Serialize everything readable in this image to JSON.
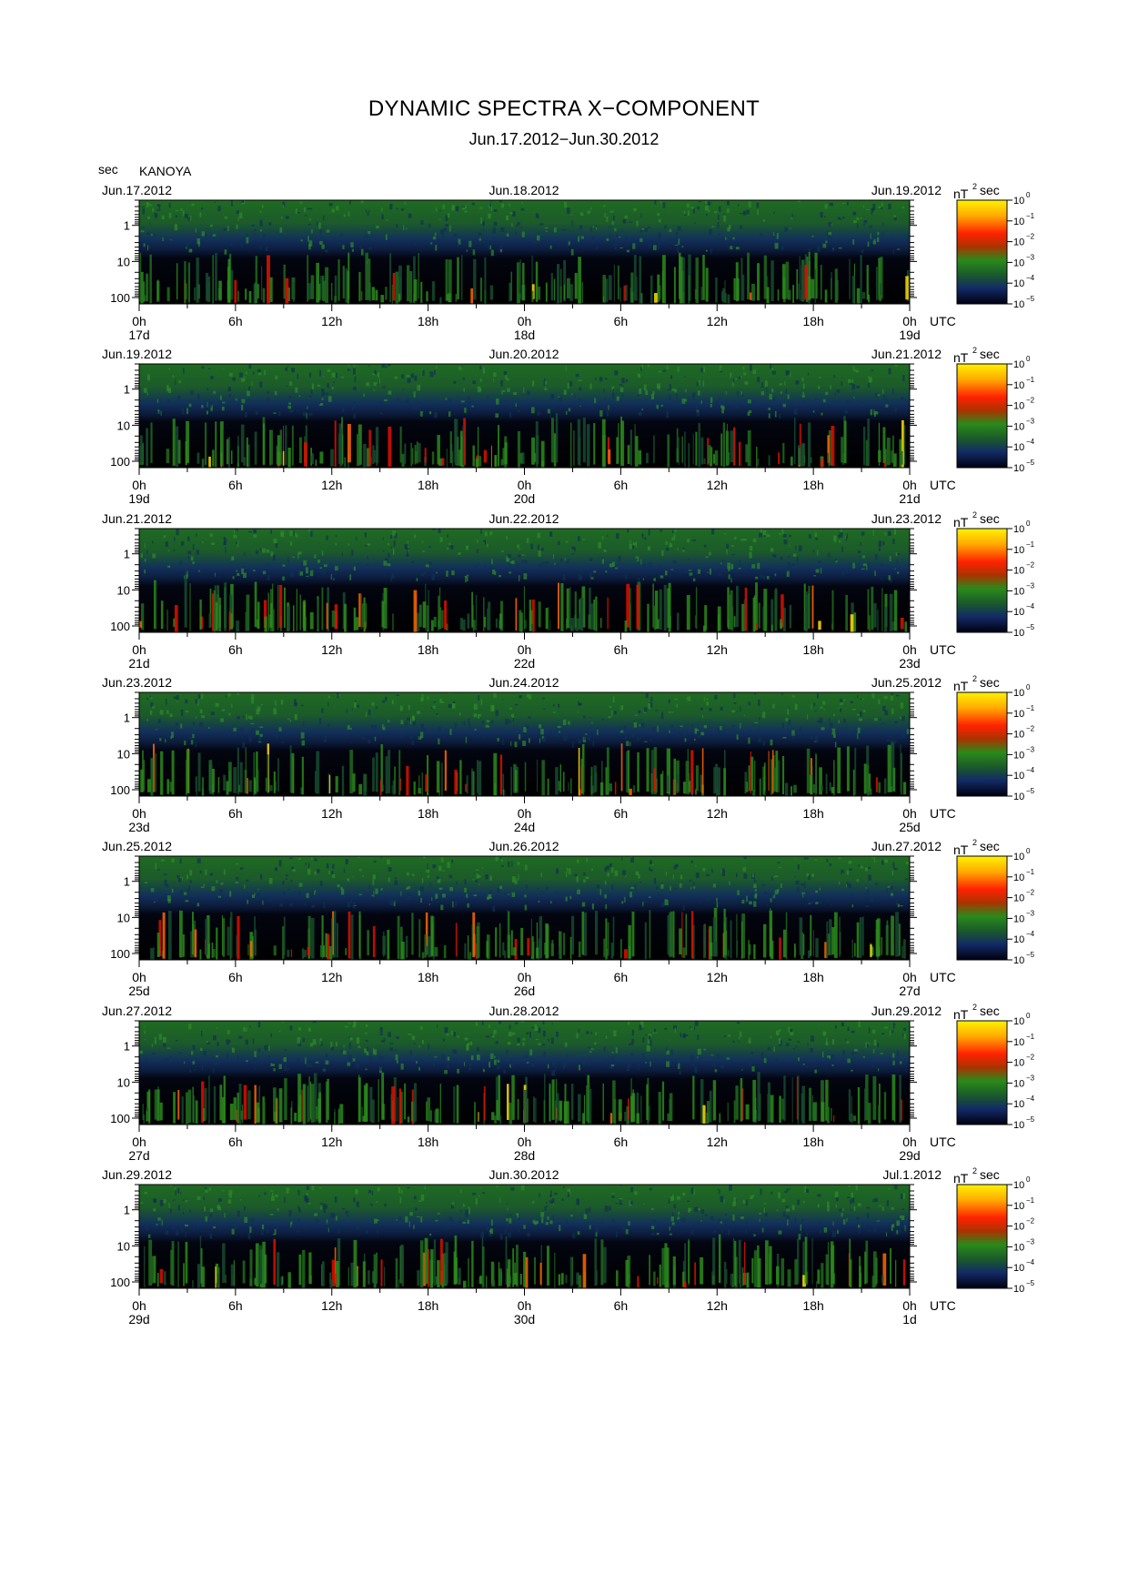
{
  "header": {
    "title": "DYNAMIC SPECTRA X−COMPONENT",
    "subtitle": "Jun.17.2012−Jun.30.2012",
    "y_unit": "sec",
    "station": "KANOYA"
  },
  "chart_data": {
    "type": "heatmap",
    "title": "DYNAMIC SPECTRA X−COMPONENT",
    "subtitle": "Jun.17.2012−Jun.30.2012",
    "station": "KANOYA",
    "ylabel": "sec",
    "yscale": "log",
    "ylim": [
      0.2,
      150
    ],
    "yticks": [
      "1",
      "10",
      "100"
    ],
    "xticks": [
      "0h",
      "6h",
      "12h",
      "18h",
      "0h",
      "6h",
      "12h",
      "18h",
      "0h"
    ],
    "xtick_suffix": "UTC",
    "colorbar": {
      "unit_label": "nT",
      "unit_exp": "2",
      "unit_tail": "sec",
      "scale": "log",
      "tick_bases": [
        "10",
        "10",
        "10",
        "10",
        "10",
        "10"
      ],
      "tick_exps": [
        "0",
        "−1",
        "−2",
        "−3",
        "−4",
        "−5"
      ],
      "colors": [
        "#ffee00",
        "#ff8800",
        "#ee1100",
        "#228822",
        "#113366",
        "#000000"
      ]
    },
    "panels": [
      {
        "date_left": "Jun.17.2012",
        "date_mid": "Jun.18.2012",
        "date_right": "Jun.19.2012",
        "day_labels": [
          "17d",
          "18d",
          "19d"
        ]
      },
      {
        "date_left": "Jun.19.2012",
        "date_mid": "Jun.20.2012",
        "date_right": "Jun.21.2012",
        "day_labels": [
          "19d",
          "20d",
          "21d"
        ]
      },
      {
        "date_left": "Jun.21.2012",
        "date_mid": "Jun.22.2012",
        "date_right": "Jun.23.2012",
        "day_labels": [
          "21d",
          "22d",
          "23d"
        ]
      },
      {
        "date_left": "Jun.23.2012",
        "date_mid": "Jun.24.2012",
        "date_right": "Jun.25.2012",
        "day_labels": [
          "23d",
          "24d",
          "25d"
        ]
      },
      {
        "date_left": "Jun.25.2012",
        "date_mid": "Jun.26.2012",
        "date_right": "Jun.27.2012",
        "day_labels": [
          "25d",
          "26d",
          "27d"
        ]
      },
      {
        "date_left": "Jun.27.2012",
        "date_mid": "Jun.28.2012",
        "date_right": "Jun.29.2012",
        "day_labels": [
          "27d",
          "28d",
          "29d"
        ]
      },
      {
        "date_left": "Jun.29.2012",
        "date_mid": "Jun.30.2012",
        "date_right": "Jul.1.2012",
        "day_labels": [
          "29d",
          "30d",
          "1d"
        ]
      }
    ]
  }
}
